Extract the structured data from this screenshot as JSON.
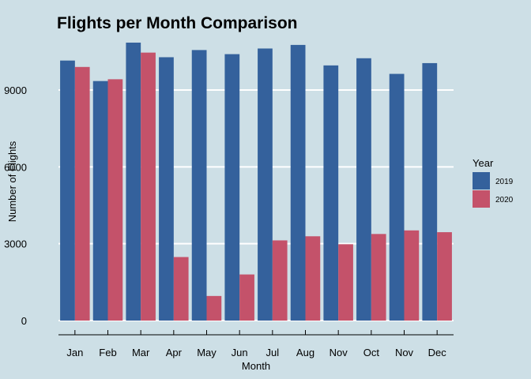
{
  "chart_data": {
    "type": "bar",
    "title": "Flights per Month Comparison",
    "xlabel": "Month",
    "ylabel": "Number of Flights",
    "categories": [
      "Jan",
      "Feb",
      "Mar",
      "Apr",
      "May",
      "Jun",
      "Jul",
      "Aug",
      "Nov",
      "Oct",
      "Nov",
      "Dec"
    ],
    "series": [
      {
        "name": "2019",
        "color": "#34619c",
        "values": [
          10150,
          9350,
          10850,
          10280,
          10560,
          10400,
          10620,
          10760,
          9960,
          10240,
          9630,
          10050
        ]
      },
      {
        "name": "2020",
        "color": "#c4526a",
        "values": [
          9900,
          9420,
          10460,
          2480,
          960,
          1800,
          3130,
          3290,
          2980,
          3380,
          3520,
          3450
        ]
      }
    ],
    "ylim": [
      0,
      11000
    ],
    "yticks": [
      0,
      3000,
      6000,
      9000
    ],
    "grid": "horizontal-major",
    "legend": {
      "title": "Year",
      "position": "right"
    }
  }
}
